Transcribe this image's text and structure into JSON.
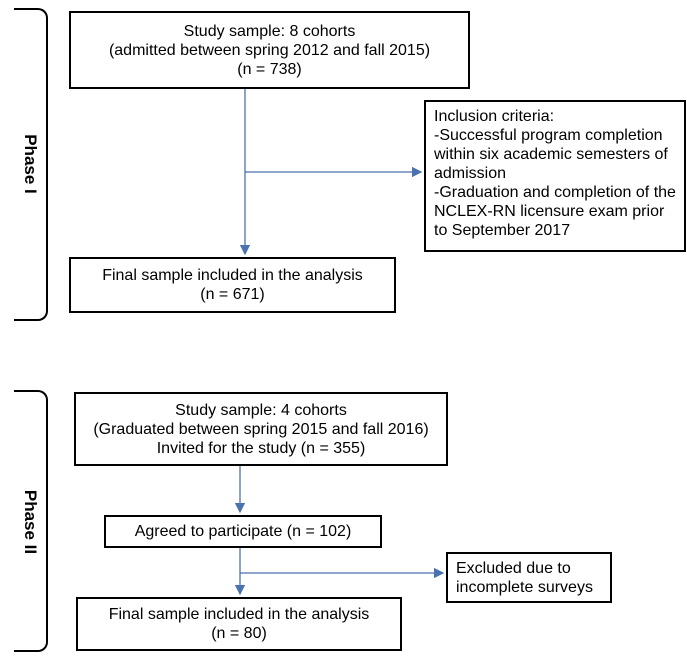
{
  "phase1": {
    "label": "Phase I",
    "study_sample": [
      "Study sample: 8 cohorts",
      "(admitted between spring 2012 and fall 2015)",
      "(n = 738)"
    ],
    "inclusion": [
      "Inclusion criteria:",
      "-Successful program completion",
      "within six academic semesters of",
      "admission",
      "-Graduation and completion of the",
      "NCLEX-RN licensure exam prior",
      "to September 2017"
    ],
    "final_sample": [
      "Final sample included in the analysis",
      "(n = 671)"
    ]
  },
  "phase2": {
    "label": "Phase II",
    "study_sample": [
      "Study sample: 4 cohorts",
      "(Graduated between spring 2015 and fall 2016)",
      "Invited for the study (n = 355)"
    ],
    "agreed": "Agreed to participate (n = 102)",
    "excluded": [
      "Excluded due to",
      "incomplete surveys"
    ],
    "final_sample": [
      "Final sample included in the analysis",
      "(n = 80)"
    ]
  },
  "colors": {
    "arrow": "#4a72b0",
    "border": "#000000"
  }
}
